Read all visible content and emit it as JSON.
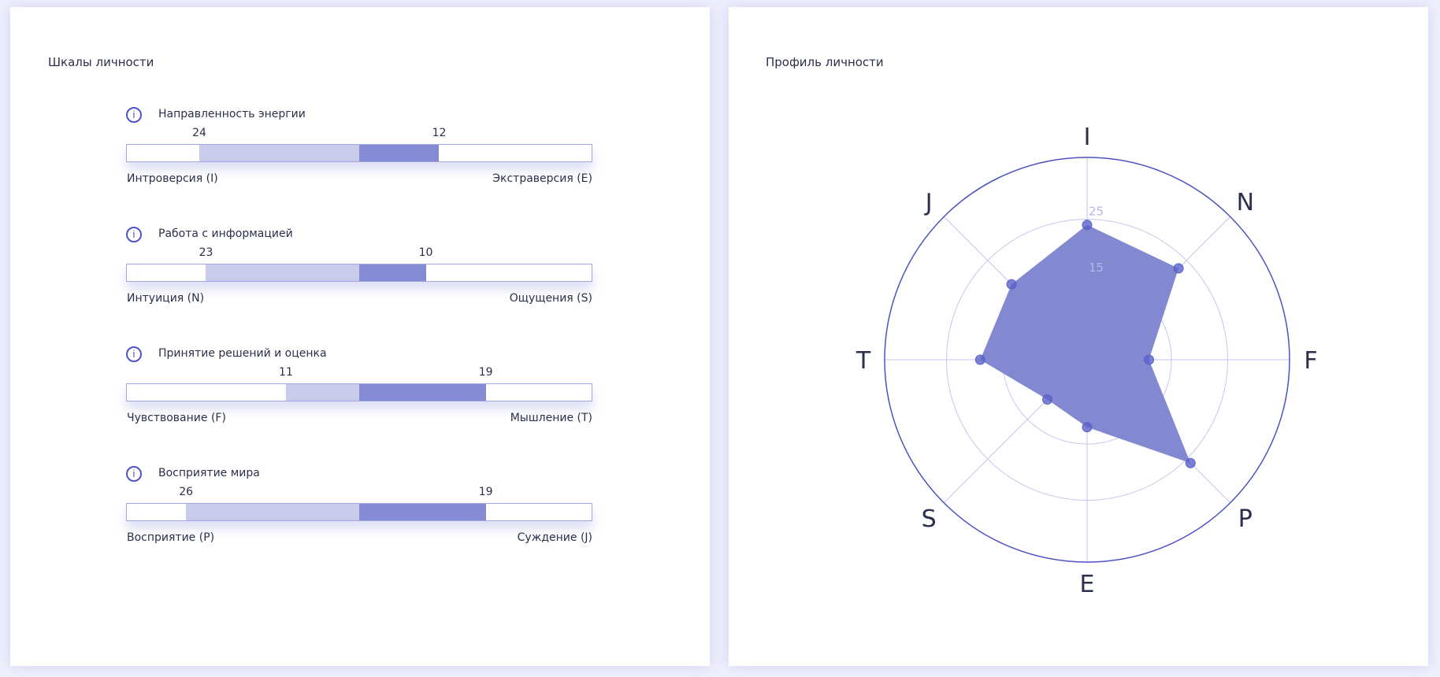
{
  "left_panel": {
    "title": "Шкалы личности",
    "info_icon": "info-circle-icon",
    "scale_max": 35,
    "scales": [
      {
        "title": "Направленность энергии",
        "left_label": "Интроверсия (I)",
        "right_label": "Экстраверсия (E)",
        "left_value": 24,
        "right_value": 12
      },
      {
        "title": "Работа с информацией",
        "left_label": "Интуиция (N)",
        "right_label": "Ощущения (S)",
        "left_value": 23,
        "right_value": 10
      },
      {
        "title": "Принятие решений и оценка",
        "left_label": "Чувствование (F)",
        "right_label": "Мышление (T)",
        "left_value": 11,
        "right_value": 19
      },
      {
        "title": "Восприятие мира",
        "left_label": "Восприятие (P)",
        "right_label": "Суждение (J)",
        "left_value": 26,
        "right_value": 19
      }
    ]
  },
  "right_panel": {
    "title": "Профиль личности"
  },
  "chart_data": {
    "type": "radar",
    "categories": [
      "I",
      "N",
      "F",
      "P",
      "E",
      "S",
      "T",
      "J"
    ],
    "values": [
      24,
      23,
      11,
      26,
      12,
      10,
      19,
      19
    ],
    "radial_range": [
      0,
      36
    ],
    "radial_tick_labels": [
      "15",
      "25"
    ],
    "radial_ticks": [
      15,
      25
    ],
    "grid": true,
    "colors": {
      "fill": "#8389d0",
      "marker": "#5a62c8",
      "outer": "#4a52c4",
      "grid": "#c3c6ec",
      "tick_label": "#b4b8e6"
    }
  },
  "colors": {
    "background": "#f0f0fc",
    "bar_light": "#c9cbea",
    "bar_dark": "#858bd2",
    "accent": "#4d55c6"
  }
}
